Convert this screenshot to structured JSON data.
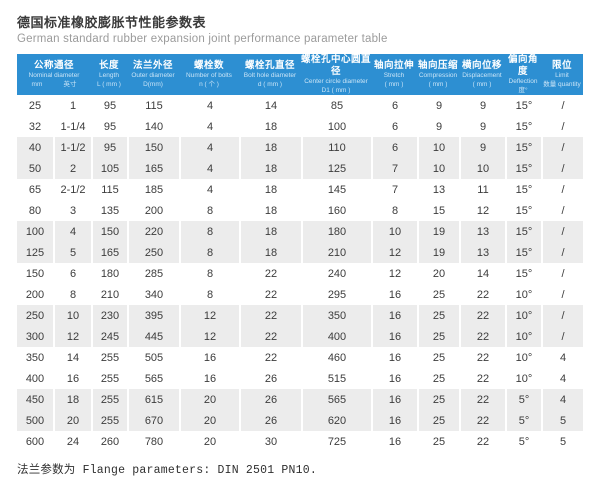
{
  "page": {
    "title": "德国标准橡胶膨胀节性能参数表",
    "subtitle": "German standard rubber expansion joint performance parameter table",
    "footer": "法兰参数为 Flange parameters: DIN 2501 PN10."
  },
  "colors": {
    "header_bg": "#2d8fd2",
    "header_text": "#ffffff",
    "header_subtext": "#c9e4f7",
    "band_bg": "#ececec",
    "body_text": "#3c3c3c"
  },
  "table": {
    "header": {
      "group_nominal": {
        "cn": "公称通径",
        "en": "Nominal diameter",
        "units": [
          "mm",
          "英寸"
        ]
      },
      "columns": [
        {
          "cn": "长度",
          "en": "Length",
          "unit": "L ( mm )"
        },
        {
          "cn": "法兰外径",
          "en": "Outer diameter",
          "unit": "D(mm)"
        },
        {
          "cn": "螺栓数",
          "en": "Number of bolts",
          "unit": "n ( 个 )"
        },
        {
          "cn": "螺栓孔直径",
          "en": "Bolt hole diameter",
          "unit": "d ( mm )"
        },
        {
          "cn": "螺栓孔中心圆直径",
          "en": "Center circle diameter",
          "unit": "D1 ( mm )"
        },
        {
          "cn": "轴向拉伸",
          "en": "Stretch",
          "unit": "( mm )"
        },
        {
          "cn": "轴向压缩",
          "en": "Compression",
          "unit": "( mm )"
        },
        {
          "cn": "横向位移",
          "en": "Displacement",
          "unit": "( mm )"
        },
        {
          "cn": "偏向角度",
          "en": "Deflection",
          "unit": "度°"
        },
        {
          "cn": "限位",
          "en": "Limit",
          "unit": "数量 quantity"
        }
      ]
    },
    "rows": [
      [
        "25",
        "1",
        "95",
        "115",
        "4",
        "14",
        "85",
        "6",
        "9",
        "9",
        "15°",
        "/"
      ],
      [
        "32",
        "1-1/4",
        "95",
        "140",
        "4",
        "18",
        "100",
        "6",
        "9",
        "9",
        "15°",
        "/"
      ],
      [
        "40",
        "1-1/2",
        "95",
        "150",
        "4",
        "18",
        "110",
        "6",
        "10",
        "9",
        "15°",
        "/"
      ],
      [
        "50",
        "2",
        "105",
        "165",
        "4",
        "18",
        "125",
        "7",
        "10",
        "10",
        "15°",
        "/"
      ],
      [
        "65",
        "2-1/2",
        "115",
        "185",
        "4",
        "18",
        "145",
        "7",
        "13",
        "11",
        "15°",
        "/"
      ],
      [
        "80",
        "3",
        "135",
        "200",
        "8",
        "18",
        "160",
        "8",
        "15",
        "12",
        "15°",
        "/"
      ],
      [
        "100",
        "4",
        "150",
        "220",
        "8",
        "18",
        "180",
        "10",
        "19",
        "13",
        "15°",
        "/"
      ],
      [
        "125",
        "5",
        "165",
        "250",
        "8",
        "18",
        "210",
        "12",
        "19",
        "13",
        "15°",
        "/"
      ],
      [
        "150",
        "6",
        "180",
        "285",
        "8",
        "22",
        "240",
        "12",
        "20",
        "14",
        "15°",
        "/"
      ],
      [
        "200",
        "8",
        "210",
        "340",
        "8",
        "22",
        "295",
        "16",
        "25",
        "22",
        "10°",
        "/"
      ],
      [
        "250",
        "10",
        "230",
        "395",
        "12",
        "22",
        "350",
        "16",
        "25",
        "22",
        "10°",
        "/"
      ],
      [
        "300",
        "12",
        "245",
        "445",
        "12",
        "22",
        "400",
        "16",
        "25",
        "22",
        "10°",
        "/"
      ],
      [
        "350",
        "14",
        "255",
        "505",
        "16",
        "22",
        "460",
        "16",
        "25",
        "22",
        "10°",
        "4"
      ],
      [
        "400",
        "16",
        "255",
        "565",
        "16",
        "26",
        "515",
        "16",
        "25",
        "22",
        "10°",
        "4"
      ],
      [
        "450",
        "18",
        "255",
        "615",
        "20",
        "26",
        "565",
        "16",
        "25",
        "22",
        "5°",
        "4"
      ],
      [
        "500",
        "20",
        "255",
        "670",
        "20",
        "26",
        "620",
        "16",
        "25",
        "22",
        "5°",
        "5"
      ],
      [
        "600",
        "24",
        "260",
        "780",
        "20",
        "30",
        "725",
        "16",
        "25",
        "22",
        "5°",
        "5"
      ]
    ]
  }
}
